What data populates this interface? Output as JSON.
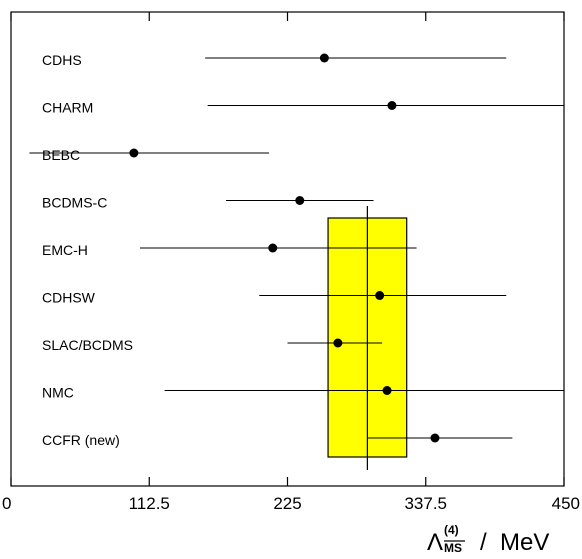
{
  "chart_data": {
    "type": "scatter",
    "orientation": "horizontal",
    "x_axis": {
      "min": 0,
      "max": 450,
      "ticks": [
        0,
        112.5,
        225,
        337.5,
        450
      ],
      "tick_labels": [
        "0",
        "112.5",
        "225",
        "337.5",
        "450"
      ],
      "label_symbol": "Λ",
      "label_superscript": "(4)",
      "label_subscript": "MS",
      "label_unit": "/  MeV"
    },
    "experiments": [
      {
        "name": "CDHS",
        "value": 255,
        "low": 158,
        "high": 403
      },
      {
        "name": "CHARM",
        "value": 310,
        "low": 160,
        "high": 450
      },
      {
        "name": "BEBC",
        "value": 100,
        "low": 15,
        "high": 210
      },
      {
        "name": "BCDMS-C",
        "value": 235,
        "low": 175,
        "high": 295
      },
      {
        "name": "EMC-H",
        "value": 213,
        "low": 105,
        "high": 330
      },
      {
        "name": "CDHSW",
        "value": 300,
        "low": 202,
        "high": 403
      },
      {
        "name": "SLAC/BCDMS",
        "value": 266,
        "low": 225,
        "high": 302
      },
      {
        "name": "NMC",
        "value": 306,
        "low": 125,
        "high": 450
      },
      {
        "name": "CCFR (new)",
        "value": 345,
        "low": 290,
        "high": 408
      }
    ],
    "average_band": {
      "center": 290,
      "low": 258,
      "high": 322
    },
    "band_color": "#ffff00",
    "marker_color": "#000000",
    "grid": false
  }
}
